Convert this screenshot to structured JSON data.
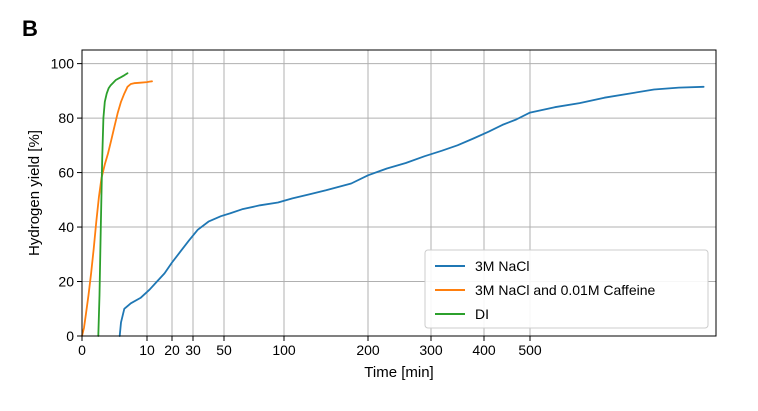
{
  "chart_data": {
    "type": "line",
    "panel_label": "B",
    "xlabel": "Time [min]",
    "ylabel": "Hydrogen yield [%]",
    "x_scale": "piecewise-nonlinear",
    "xlim": [
      0,
      800
    ],
    "ylim": [
      0,
      105
    ],
    "x_ticks": [
      0,
      10,
      20,
      30,
      50,
      100,
      200,
      300,
      400,
      500
    ],
    "y_ticks": [
      0,
      20,
      40,
      60,
      80,
      100
    ],
    "grid": true,
    "legend_position": "bottom-right",
    "colors": {
      "3M NaCl": "#1f77b4",
      "3M NaCl and 0.01M Caffeine": "#ff7f0e",
      "DI": "#2ca02c"
    },
    "series": [
      {
        "name": "3M NaCl",
        "color": "#1f77b4",
        "x": [
          5.8,
          6.0,
          6.5,
          7.5,
          9.0,
          11.0,
          14.0,
          17.0,
          20.0,
          24.0,
          28.0,
          33.0,
          40.0,
          48.0,
          55.0,
          65.0,
          80.0,
          95.0,
          110.0,
          130.0,
          150.0,
          180.0,
          200.0,
          230.0,
          260.0,
          290.0,
          320.0,
          350.0,
          380.0,
          410.0,
          440.0,
          470.0,
          500.0,
          540.0,
          580.0,
          620.0,
          660.0,
          700.0,
          740.0,
          780.0
        ],
        "y": [
          0,
          5,
          10,
          12,
          14,
          17,
          20,
          23,
          27,
          31,
          35,
          39,
          42,
          44,
          45,
          46.5,
          48,
          49,
          50.5,
          52,
          53.5,
          56,
          59,
          61.5,
          63.5,
          66,
          68,
          70,
          72.5,
          75,
          77.5,
          79.5,
          82,
          84,
          85.5,
          87.5,
          89,
          90.5,
          91.2,
          91.5
        ]
      },
      {
        "name": "3M NaCl and 0.01M Caffeine",
        "color": "#ff7f0e",
        "x": [
          0,
          0.3,
          0.6,
          1.0,
          1.4,
          1.8,
          2.2,
          2.6,
          3.0,
          3.5,
          4.0,
          4.5,
          5.0,
          5.5,
          6.0,
          6.5,
          7.0,
          7.5,
          8.0,
          9.0,
          10.0,
          11.0,
          12.0
        ],
        "y": [
          0,
          3,
          8,
          15,
          23,
          32,
          42,
          51,
          58,
          63,
          67,
          72,
          77,
          82,
          86,
          89,
          91.5,
          92.5,
          92.8,
          93,
          93.2,
          93.4,
          93.5
        ]
      },
      {
        "name": "DI",
        "color": "#2ca02c",
        "x": [
          2.5,
          2.7,
          2.9,
          3.1,
          3.3,
          3.5,
          3.8,
          4.1,
          4.4,
          4.8,
          5.2,
          5.6,
          6.0,
          6.5,
          7.0
        ],
        "y": [
          0,
          15,
          40,
          65,
          80,
          86,
          89,
          91,
          92,
          93,
          94,
          94.5,
          95,
          95.7,
          96.5
        ]
      }
    ]
  }
}
